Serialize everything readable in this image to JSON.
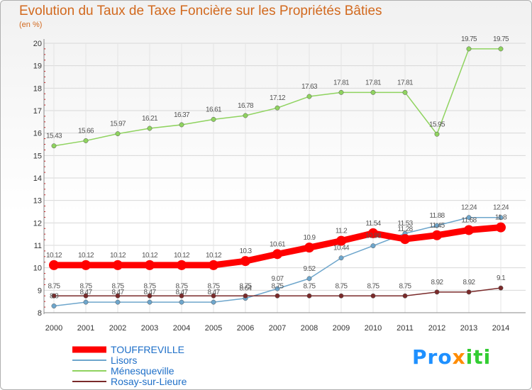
{
  "title": "Evolution du Taux de Taxe Foncière sur les Propriétés Bâties",
  "unit": "(en %)",
  "logo": {
    "p1": "Pro",
    "p2": "x",
    "p3": "iti"
  },
  "chart_data": {
    "type": "line",
    "title": "Evolution du Taux de Taxe Foncière sur les Propriétés Bâties",
    "ylabel": "(en %)",
    "xlabel": "",
    "ylim": [
      8,
      20
    ],
    "yticks": [
      8,
      9,
      10,
      11,
      12,
      13,
      14,
      15,
      16,
      17,
      18,
      19,
      20
    ],
    "categories": [
      "2000",
      "2001",
      "2002",
      "2003",
      "2004",
      "2005",
      "2006",
      "2007",
      "2008",
      "2009",
      "2010",
      "2011",
      "2012",
      "2013",
      "2014"
    ],
    "series": [
      {
        "name": "TOUFFREVILLE",
        "color": "#ff0000",
        "width": 9,
        "marker": 7,
        "values": [
          10.12,
          10.12,
          10.12,
          10.12,
          10.12,
          10.12,
          10.3,
          10.61,
          10.9,
          11.2,
          11.54,
          11.28,
          11.45,
          11.68,
          11.8
        ],
        "labels": [
          "10.12",
          "10.12",
          "10.12",
          "10.12",
          "10.12",
          "10.12",
          "10.3",
          "10.61",
          "10.9",
          "11.2",
          "11.54",
          "11.28",
          "11.45",
          "11.68",
          "11.8"
        ]
      },
      {
        "name": "Lisors",
        "color": "#6ea6cc",
        "width": 1.5,
        "marker": 3.2,
        "values": [
          8.3,
          8.47,
          8.47,
          8.47,
          8.47,
          8.47,
          8.64,
          9.07,
          9.52,
          10.44,
          10.98,
          11.53,
          11.88,
          12.24,
          12.24
        ],
        "labels": [
          "8.3",
          "8.47",
          "8.47",
          "8.47",
          "8.47",
          "8.47",
          "8.64",
          "9.07",
          "9.52",
          "10.44",
          "10.98",
          "11.53",
          "11.88",
          "12.24",
          "12.24"
        ]
      },
      {
        "name": "Ménesqueville",
        "color": "#8fd35f",
        "width": 1.5,
        "marker": 3.2,
        "values": [
          15.43,
          15.66,
          15.97,
          16.21,
          16.37,
          16.61,
          16.78,
          17.12,
          17.63,
          17.81,
          17.81,
          17.81,
          15.95,
          19.75,
          19.75
        ],
        "labels": [
          "15.43",
          "15.66",
          "15.97",
          "16.21",
          "16.37",
          "16.61",
          "16.78",
          "17.12",
          "17.63",
          "17.81",
          "17.81",
          "17.81",
          "15.95",
          "19.75",
          "19.75"
        ]
      },
      {
        "name": "Rosay-sur-Lieure",
        "color": "#7a2a2a",
        "width": 1.5,
        "marker": 3.2,
        "values": [
          8.75,
          8.75,
          8.75,
          8.75,
          8.75,
          8.75,
          8.75,
          8.75,
          8.75,
          8.75,
          8.75,
          8.75,
          8.92,
          8.92,
          9.1
        ],
        "labels": [
          "8.75",
          "8.75",
          "8.75",
          "8.75",
          "8.75",
          "8.75",
          "8.75",
          "8.75",
          "8.75",
          "8.75",
          "8.75",
          "8.75",
          "8.92",
          "8.92",
          "9.1"
        ]
      }
    ],
    "legend_position": "bottom-left"
  }
}
